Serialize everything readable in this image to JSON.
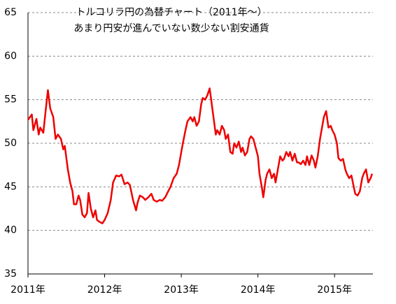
{
  "chart_data": {
    "type": "line",
    "title": "トルコリラ円の為替チャート（2011年～）",
    "subtitle": "あまり円安が進んでいない数少ない割安通貨",
    "x": [
      2011,
      2011.05,
      2011.07,
      2011.11,
      2011.14,
      2011.16,
      2011.2,
      2011.24,
      2011.26,
      2011.29,
      2011.33,
      2011.36,
      2011.39,
      2011.43,
      2011.46,
      2011.48,
      2011.52,
      2011.55,
      2011.58,
      2011.6,
      2011.63,
      2011.66,
      2011.68,
      2011.71,
      2011.74,
      2011.77,
      2011.79,
      2011.82,
      2011.85,
      2011.88,
      2011.9,
      2011.93,
      2011.97,
      2012.0,
      2012.04,
      2012.08,
      2012.11,
      2012.15,
      2012.19,
      2012.22,
      2012.26,
      2012.3,
      2012.33,
      2012.37,
      2012.41,
      2012.43,
      2012.46,
      2012.5,
      2012.53,
      2012.57,
      2012.61,
      2012.64,
      2012.68,
      2012.72,
      2012.75,
      2012.79,
      2012.83,
      2012.86,
      2012.9,
      2012.94,
      2012.97,
      2013.01,
      2013.05,
      2013.08,
      2013.12,
      2013.15,
      2013.17,
      2013.2,
      2013.23,
      2013.26,
      2013.28,
      2013.31,
      2013.34,
      2013.37,
      2013.39,
      2013.42,
      2013.45,
      2013.47,
      2013.5,
      2013.53,
      2013.56,
      2013.58,
      2013.61,
      2013.64,
      2013.67,
      2013.69,
      2013.72,
      2013.75,
      2013.78,
      2013.8,
      2013.83,
      2013.86,
      2013.89,
      2013.91,
      2013.94,
      2013.97,
      2014.0,
      2014.02,
      2014.05,
      2014.07,
      2014.1,
      2014.12,
      2014.15,
      2014.18,
      2014.21,
      2014.23,
      2014.26,
      2014.29,
      2014.32,
      2014.34,
      2014.37,
      2014.4,
      2014.42,
      2014.45,
      2014.48,
      2014.51,
      2014.53,
      2014.56,
      2014.59,
      2014.62,
      2014.64,
      2014.67,
      2014.7,
      2014.73,
      2014.75,
      2014.78,
      2014.81,
      2014.84,
      2014.86,
      2014.89,
      2014.92,
      2014.95,
      2014.97,
      2015.0,
      2015.03,
      2015.05,
      2015.08,
      2015.11,
      2015.14,
      2015.16,
      2015.19,
      2015.22,
      2015.25,
      2015.27,
      2015.3,
      2015.33,
      2015.36,
      2015.38,
      2015.41,
      2015.44,
      2015.47,
      2015.49
    ],
    "series": [
      {
        "name": "トルコリラ円",
        "color": "#ee0000",
        "values": [
          52.7,
          53.3,
          51.5,
          52.8,
          51.0,
          51.8,
          51.2,
          54.5,
          56.1,
          54.0,
          53.0,
          50.5,
          51.0,
          50.5,
          49.3,
          49.7,
          47.0,
          45.5,
          44.5,
          43.0,
          43.0,
          44.0,
          43.5,
          41.8,
          41.5,
          42.0,
          44.3,
          42.5,
          41.5,
          42.3,
          41.2,
          41.0,
          40.8,
          41.2,
          42.0,
          43.5,
          45.5,
          46.3,
          46.2,
          46.4,
          45.3,
          45.5,
          45.2,
          43.5,
          42.3,
          43.2,
          44.0,
          43.8,
          43.5,
          43.8,
          44.2,
          43.5,
          43.3,
          43.5,
          43.4,
          43.8,
          44.5,
          45.0,
          46.0,
          46.5,
          47.5,
          49.5,
          51.3,
          52.5,
          53.0,
          52.5,
          53.0,
          52.0,
          52.5,
          54.5,
          55.2,
          55.0,
          55.5,
          56.3,
          55.0,
          53.0,
          51.0,
          51.5,
          51.0,
          52.0,
          51.5,
          50.5,
          51.0,
          49.0,
          48.8,
          50.0,
          49.5,
          50.2,
          49.0,
          49.5,
          48.6,
          49.0,
          50.5,
          50.8,
          50.5,
          49.5,
          48.5,
          46.5,
          45.0,
          43.8,
          45.8,
          46.5,
          47.0,
          46.0,
          46.5,
          45.5,
          47.0,
          48.5,
          48.0,
          48.2,
          49.0,
          48.5,
          49.0,
          48.0,
          48.8,
          47.8,
          47.8,
          47.6,
          48.0,
          47.5,
          48.5,
          47.5,
          48.6,
          48.0,
          47.2,
          48.5,
          50.5,
          52.0,
          53.0,
          53.7,
          51.8,
          52.0,
          51.5,
          51.0,
          50.0,
          48.3,
          48.0,
          48.2,
          47.0,
          46.5,
          46.0,
          46.3,
          45.0,
          44.2,
          44.0,
          44.5,
          46.0,
          46.5,
          47.0,
          45.5,
          46.0,
          46.5
        ]
      }
    ],
    "xlim": [
      2011,
      2015.5
    ],
    "xticks": [
      {
        "value": 2011,
        "label": "2011年"
      },
      {
        "value": 2012,
        "label": "2012年"
      },
      {
        "value": 2013,
        "label": "2013年"
      },
      {
        "value": 2014,
        "label": "2014年"
      },
      {
        "value": 2015,
        "label": "2015年"
      }
    ],
    "ylim": [
      35,
      65
    ],
    "yticks": [
      35,
      40,
      45,
      50,
      55,
      60,
      65
    ],
    "grid": true
  }
}
